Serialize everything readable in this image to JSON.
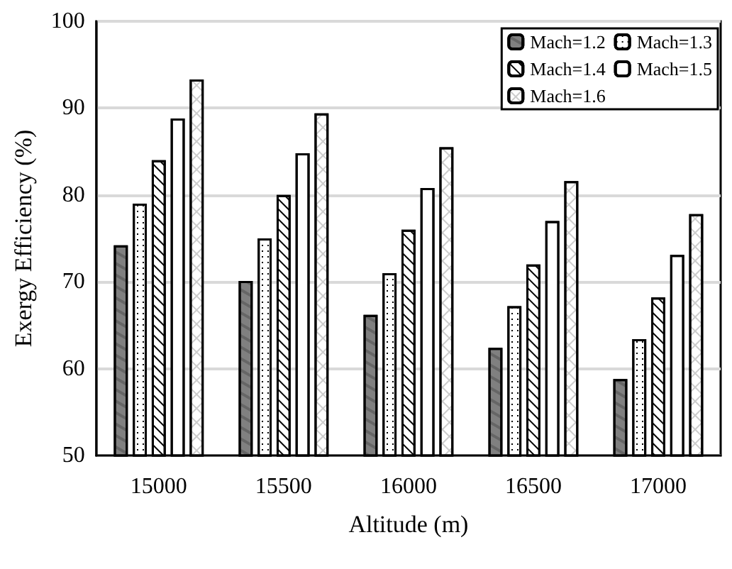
{
  "chart_data": {
    "type": "bar",
    "xlabel": "Altitude (m)",
    "ylabel": "Exergy Efficiency (%)",
    "categories": [
      "15000",
      "15500",
      "16000",
      "16500",
      "17000"
    ],
    "series": [
      {
        "name": "Mach=1.2",
        "color": "#808080",
        "values": [
          74.2,
          70.1,
          66.2,
          62.4,
          58.8
        ]
      },
      {
        "name": "Mach=1.3",
        "color": "#ffffff",
        "values": [
          79,
          75,
          71,
          67.2,
          63.4
        ]
      },
      {
        "name": "Mach=1.4",
        "color": "#ffffff",
        "values": [
          84,
          80,
          76,
          72,
          68.2
        ]
      },
      {
        "name": "Mach=1.5",
        "color": "#ffffff",
        "values": [
          88.8,
          84.8,
          80.8,
          77,
          73.1
        ]
      },
      {
        "name": "Mach=1.6",
        "color": "#ffffff",
        "values": [
          93.3,
          89.4,
          85.5,
          81.6,
          77.8
        ]
      }
    ],
    "ylim": [
      50,
      100
    ],
    "yticks": [
      50,
      60,
      70,
      80,
      90,
      100
    ],
    "grid": "y",
    "legend": "top right"
  }
}
